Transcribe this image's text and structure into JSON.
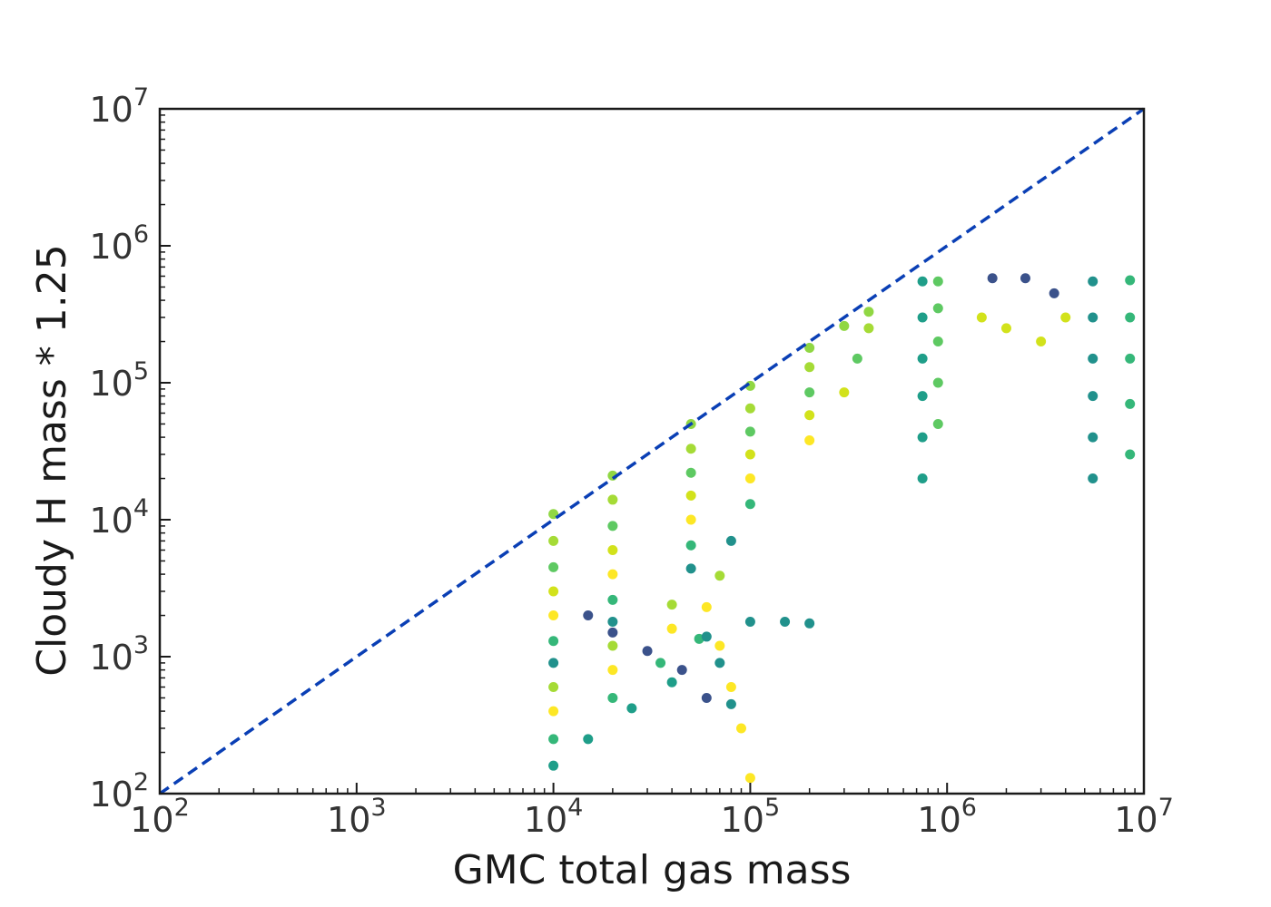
{
  "chart_data": {
    "type": "scatter",
    "title": "",
    "xlabel": "GMC total gas mass",
    "ylabel": "Cloudy H mass * 1.25",
    "xscale": "log",
    "yscale": "log",
    "xlim": [
      100,
      10000000
    ],
    "ylim": [
      100,
      10000000
    ],
    "grid": false,
    "legend": "none",
    "x_ticks": [
      {
        "value": 100,
        "base": "10",
        "exp": "2"
      },
      {
        "value": 1000,
        "base": "10",
        "exp": "3"
      },
      {
        "value": 10000,
        "base": "10",
        "exp": "4"
      },
      {
        "value": 100000,
        "base": "10",
        "exp": "5"
      },
      {
        "value": 1000000,
        "base": "10",
        "exp": "6"
      },
      {
        "value": 10000000,
        "base": "10",
        "exp": "7"
      }
    ],
    "y_ticks": [
      {
        "value": 100,
        "base": "10",
        "exp": "2"
      },
      {
        "value": 1000,
        "base": "10",
        "exp": "3"
      },
      {
        "value": 10000,
        "base": "10",
        "exp": "4"
      },
      {
        "value": 100000,
        "base": "10",
        "exp": "5"
      },
      {
        "value": 1000000,
        "base": "10",
        "exp": "6"
      },
      {
        "value": 10000000,
        "base": "10",
        "exp": "7"
      }
    ],
    "reference_line": {
      "x": [
        100,
        10000000
      ],
      "y": [
        100,
        10000000
      ],
      "style": "dashed",
      "color": "#0a3fb5"
    },
    "colormap": [
      "#440154",
      "#3b528b",
      "#21918c",
      "#1f9e89",
      "#35b779",
      "#5ec962",
      "#90d743",
      "#a5db36",
      "#d2e21b",
      "#fde725"
    ],
    "series": [
      {
        "x": [
          10000,
          20000,
          50000,
          100000,
          200000,
          300000,
          400000
        ],
        "y": [
          11000,
          21000,
          50000,
          95000,
          180000,
          260000,
          330000
        ],
        "color": "#90d743"
      },
      {
        "x": [
          10000,
          20000,
          50000,
          100000,
          200000,
          400000
        ],
        "y": [
          7000,
          14000,
          33000,
          65000,
          130000,
          250000
        ],
        "color": "#a5db36"
      },
      {
        "x": [
          10000,
          20000,
          50000,
          100000,
          200000,
          350000
        ],
        "y": [
          4500,
          9000,
          22000,
          44000,
          85000,
          150000
        ],
        "color": "#5ec962"
      },
      {
        "x": [
          10000,
          20000,
          50000,
          100000,
          200000,
          300000
        ],
        "y": [
          3000,
          6000,
          15000,
          30000,
          58000,
          85000
        ],
        "color": "#d2e21b"
      },
      {
        "x": [
          10000,
          20000,
          50000,
          100000,
          200000
        ],
        "y": [
          2000,
          4000,
          10000,
          20000,
          38000
        ],
        "color": "#fde725"
      },
      {
        "x": [
          10000,
          20000,
          50000,
          100000
        ],
        "y": [
          1300,
          2600,
          6500,
          13000
        ],
        "color": "#35b779"
      },
      {
        "x": [
          10000,
          20000,
          50000,
          80000
        ],
        "y": [
          900,
          1800,
          4400,
          7000
        ],
        "color": "#21918c"
      },
      {
        "x": [
          10000,
          20000,
          40000,
          70000
        ],
        "y": [
          600,
          1200,
          2400,
          3900
        ],
        "color": "#a5db36"
      },
      {
        "x": [
          10000,
          20000,
          40000,
          60000
        ],
        "y": [
          400,
          800,
          1600,
          2300
        ],
        "color": "#fde725"
      },
      {
        "x": [
          10000,
          20000,
          35000,
          55000
        ],
        "y": [
          250,
          500,
          900,
          1350
        ],
        "color": "#35b779"
      },
      {
        "x": [
          10000,
          15000,
          25000,
          40000
        ],
        "y": [
          160,
          250,
          420,
          650
        ],
        "color": "#1f9e89"
      },
      {
        "x": [
          15000,
          20000,
          30000,
          45000,
          60000
        ],
        "y": [
          2000,
          1500,
          1100,
          800,
          500
        ],
        "color": "#3b528b"
      },
      {
        "x": [
          70000,
          80000,
          90000,
          100000
        ],
        "y": [
          1200,
          600,
          300,
          130
        ],
        "color": "#fde725"
      },
      {
        "x": [
          60000,
          70000,
          80000
        ],
        "y": [
          1400,
          900,
          450
        ],
        "color": "#21918c"
      },
      {
        "x": [
          100000,
          150000,
          200000
        ],
        "y": [
          1800,
          1800,
          1750
        ],
        "color": "#21918c"
      },
      {
        "x": [
          750000,
          750000,
          750000,
          750000,
          750000,
          750000
        ],
        "y": [
          20000,
          40000,
          80000,
          150000,
          300000,
          550000
        ],
        "color": "#1f9e89"
      },
      {
        "x": [
          900000,
          900000,
          900000,
          900000,
          900000
        ],
        "y": [
          50000,
          100000,
          200000,
          350000,
          550000
        ],
        "color": "#5ec962"
      },
      {
        "x": [
          1700000,
          2500000,
          3500000
        ],
        "y": [
          580000,
          580000,
          450000
        ],
        "color": "#3b528b"
      },
      {
        "x": [
          1500000,
          2000000,
          3000000,
          4000000
        ],
        "y": [
          300000,
          250000,
          200000,
          300000
        ],
        "color": "#d2e21b"
      },
      {
        "x": [
          5500000,
          5500000,
          5500000,
          5500000,
          5500000,
          5500000
        ],
        "y": [
          20000,
          40000,
          80000,
          150000,
          300000,
          550000
        ],
        "color": "#21918c"
      },
      {
        "x": [
          8500000,
          8500000,
          8500000,
          8500000,
          8500000
        ],
        "y": [
          30000,
          70000,
          150000,
          300000,
          560000
        ],
        "color": "#35b779"
      }
    ]
  }
}
